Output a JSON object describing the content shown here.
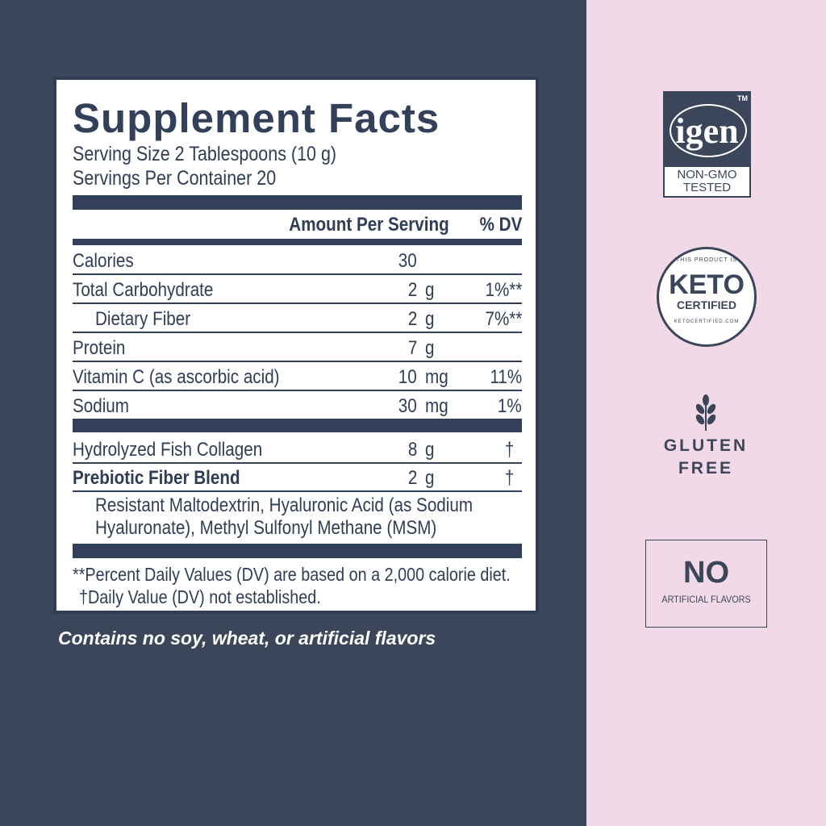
{
  "facts": {
    "title": "Supplement Facts",
    "serving_size": "Serving Size 2 Tablespoons (10 g)",
    "servings_per_container": "Servings Per Container 20",
    "header_amount": "Amount Per Serving",
    "header_dv": "% DV",
    "rows": [
      {
        "name": "Calories",
        "amount": "30",
        "unit": "",
        "dv": ""
      },
      {
        "name": "Total Carbohydrate",
        "amount": "2",
        "unit": "g",
        "dv": "1%**"
      },
      {
        "name": "Dietary Fiber",
        "amount": "2",
        "unit": "g",
        "dv": "7%**"
      },
      {
        "name": "Protein",
        "amount": "7",
        "unit": "g",
        "dv": ""
      },
      {
        "name": "Vitamin C (as ascorbic acid)",
        "amount": "10",
        "unit": "mg",
        "dv": "11%"
      },
      {
        "name": "Sodium",
        "amount": "30",
        "unit": "mg",
        "dv": "1%"
      }
    ],
    "other_rows": [
      {
        "name": "Hydrolyzed Fish Collagen",
        "amount": "8",
        "unit": "g",
        "dv": "†"
      },
      {
        "name": "Prebiotic Fiber Blend",
        "amount": "2",
        "unit": "g",
        "dv": "†"
      }
    ],
    "blend_ingredients_1": "Resistant Maltodextrin, Hyaluronic Acid (as Sodium",
    "blend_ingredients_2": "Hyaluronate), Methyl Sulfonyl Methane (MSM)",
    "footnote_1": "**Percent Daily Values (DV) are based on a 2,000 calorie diet.",
    "footnote_2": "†Daily Value (DV) not established."
  },
  "tagline": "Contains no soy, wheat, or artificial flavors",
  "badges": {
    "igen": {
      "logo": "igen",
      "tm": "TM",
      "line1": "NON-GMO",
      "line2": "TESTED"
    },
    "keto": {
      "top": "THIS PRODUCT IS",
      "main": "KETO",
      "sub": "CERTIFIED",
      "bottom": "KETOCERTIFIED.COM"
    },
    "gluten": {
      "icon": "wheat-icon",
      "line1": "GLUTEN",
      "line2": "FREE"
    },
    "flavors": {
      "main": "NO",
      "sub": "ARTIFICIAL FLAVORS"
    }
  },
  "colors": {
    "navy": "#3c465a",
    "pink": "#f2d9e7"
  }
}
